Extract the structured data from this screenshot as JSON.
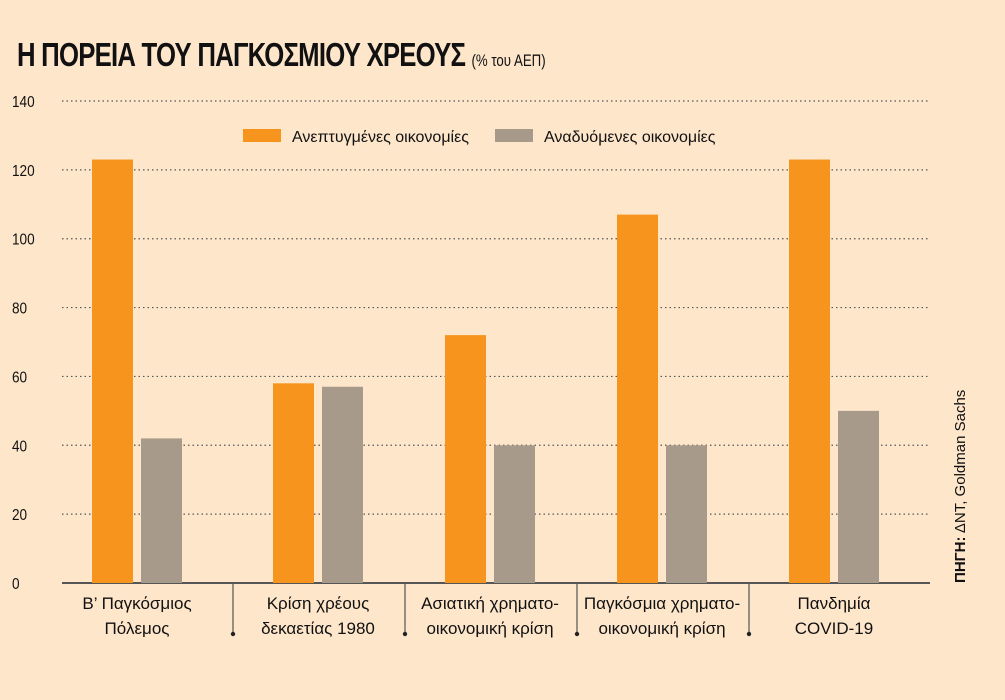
{
  "chart_data": {
    "type": "bar",
    "title": "Η ΠΟΡΕΙΑ ΤΟΥ ΠΑΓΚΟΣΜΙΟΥ ΧΡΕΟΥΣ",
    "subtitle": "(% του ΑΕΠ)",
    "categories": [
      [
        "Β’ Παγκόσμιος",
        "Πόλεμος"
      ],
      [
        "Κρίση χρέους",
        "δεκαετίας 1980"
      ],
      [
        "Ασιατική χρηματο-",
        "οικονομική κρίση"
      ],
      [
        "Παγκόσμια χρηματο-",
        "οικονομική κρίση"
      ],
      [
        "Πανδημία",
        "COVID-19"
      ]
    ],
    "series": [
      {
        "name": "Ανεπτυγμένες οικονομίες",
        "color": "#f7941d",
        "values": [
          123,
          58,
          72,
          107,
          123
        ]
      },
      {
        "name": "Αναδυόμενες οικονομίες",
        "color": "#a89a8a",
        "values": [
          42,
          57,
          40,
          40,
          50
        ]
      }
    ],
    "yticks": [
      "0",
      "20",
      "40",
      "60",
      "80",
      "100",
      "120",
      "140"
    ],
    "ylim": [
      0,
      140
    ],
    "grid": true,
    "legend": "top",
    "source_label": "ΠΗΓΗ:",
    "source_text": "ΔΝΤ, Goldman Sachs"
  }
}
